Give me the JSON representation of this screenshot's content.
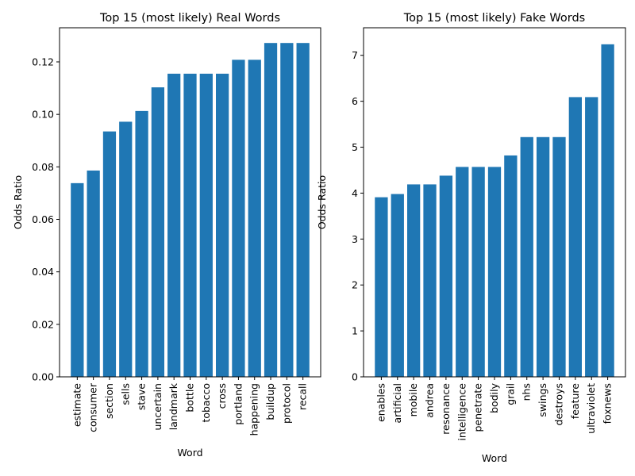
{
  "chart_data": [
    {
      "type": "bar",
      "title": "Top 15 (most likely) Real Words",
      "xlabel": "Word",
      "ylabel": "Odds Ratio",
      "ylim": [
        0,
        0.133
      ],
      "yticks": [
        "0.00",
        "0.02",
        "0.04",
        "0.06",
        "0.08",
        "0.10",
        "0.12"
      ],
      "categories": [
        "estimate",
        "consumer",
        "section",
        "sells",
        "stave",
        "uncertain",
        "landmark",
        "bottle",
        "tobacco",
        "cross",
        "portland",
        "happening",
        "buildup",
        "protocol",
        "recall"
      ],
      "values": [
        0.0738,
        0.0786,
        0.0935,
        0.0972,
        0.1013,
        0.1103,
        0.1155,
        0.1155,
        0.1155,
        0.1155,
        0.1208,
        0.1208,
        0.1272,
        0.1272,
        0.1272
      ],
      "bar_color": "#1f77b4",
      "grid": false
    },
    {
      "type": "bar",
      "title": "Top 15 (most likely) Fake Words",
      "xlabel": "Word",
      "ylabel": "Odds Ratio",
      "ylim": [
        0,
        7.6
      ],
      "yticks": [
        "0",
        "1",
        "2",
        "3",
        "4",
        "5",
        "6",
        "7"
      ],
      "categories": [
        "enables",
        "artificial",
        "mobile",
        "andrea",
        "resonance",
        "intelligence",
        "penetrate",
        "bodily",
        "grail",
        "nhs",
        "swings",
        "destroys",
        "feature",
        "ultraviolet",
        "foxnews"
      ],
      "values": [
        3.91,
        3.98,
        4.19,
        4.19,
        4.38,
        4.57,
        4.57,
        4.57,
        4.82,
        5.22,
        5.22,
        5.22,
        6.09,
        6.09,
        7.24
      ],
      "bar_color": "#1f77b4",
      "grid": false
    }
  ]
}
